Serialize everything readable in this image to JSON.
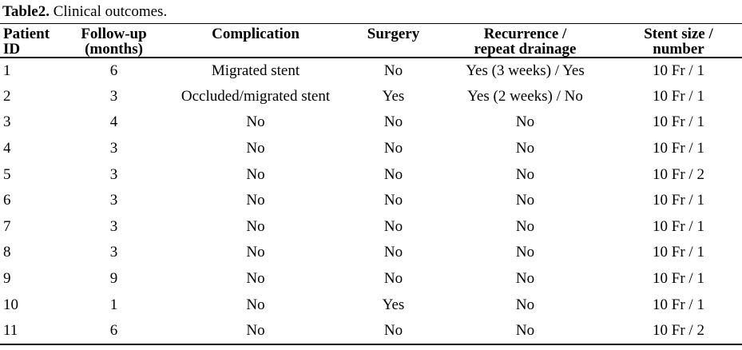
{
  "title": {
    "label_bold": "Table2.",
    "label_rest": " Clinical outcomes."
  },
  "colors": {
    "text": "#000000",
    "rules": "#000000",
    "background": "#ffffff"
  },
  "table": {
    "columns": [
      {
        "id": "patient_id",
        "header_line1": "Patient",
        "header_line2": "ID"
      },
      {
        "id": "follow_up",
        "header_line1": "Follow-up",
        "header_line2": "(months)"
      },
      {
        "id": "complication",
        "header_line1": "Complication",
        "header_line2": ""
      },
      {
        "id": "surgery",
        "header_line1": "Surgery",
        "header_line2": ""
      },
      {
        "id": "recurrence",
        "header_line1": "Recurrence /",
        "header_line2": "repeat drainage"
      },
      {
        "id": "stent",
        "header_line1": "Stent size /",
        "header_line2": "number"
      }
    ],
    "rows": [
      [
        "1",
        "6",
        "Migrated stent",
        "No",
        "Yes (3 weeks) / Yes",
        "10 Fr / 1"
      ],
      [
        "2",
        "3",
        "Occluded/migrated stent",
        "Yes",
        "Yes (2 weeks) / No",
        "10 Fr / 1"
      ],
      [
        "3",
        "4",
        "No",
        "No",
        "No",
        "10 Fr / 1"
      ],
      [
        "4",
        "3",
        "No",
        "No",
        "No",
        "10 Fr / 1"
      ],
      [
        "5",
        "3",
        "No",
        "No",
        "No",
        "10 Fr / 2"
      ],
      [
        "6",
        "3",
        "No",
        "No",
        "No",
        "10 Fr / 1"
      ],
      [
        "7",
        "3",
        "No",
        "No",
        "No",
        "10 Fr / 1"
      ],
      [
        "8",
        "3",
        "No",
        "No",
        "No",
        "10 Fr / 1"
      ],
      [
        "9",
        "9",
        "No",
        "No",
        "No",
        "10 Fr / 1"
      ],
      [
        "10",
        "1",
        "No",
        "Yes",
        "No",
        "10 Fr / 1"
      ],
      [
        "11",
        "6",
        "No",
        "No",
        "No",
        "10 Fr / 2"
      ]
    ]
  }
}
